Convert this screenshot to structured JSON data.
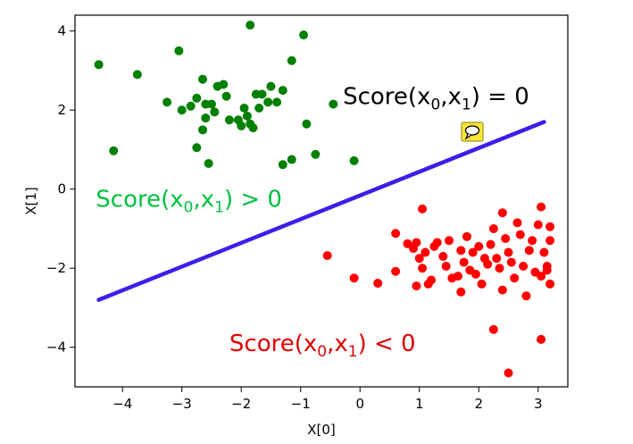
{
  "chart_data": {
    "type": "scatter",
    "xlabel": "X[0]",
    "ylabel": "X[1]",
    "xlim": [
      -4.8,
      3.5
    ],
    "ylim": [
      -5.0,
      4.4
    ],
    "grid": false,
    "xticks": [
      -4,
      -3,
      -2,
      -1,
      0,
      1,
      2,
      3
    ],
    "yticks": [
      -4,
      -2,
      0,
      2,
      4
    ],
    "xtick_labels": [
      "−4",
      "−3",
      "−2",
      "−1",
      "0",
      "1",
      "2",
      "3"
    ],
    "ytick_labels": [
      "−4",
      "−2",
      "0",
      "2",
      "4"
    ],
    "series": [
      {
        "color": "#008000",
        "points": [
          [
            -4.4,
            3.15
          ],
          [
            -3.75,
            2.9
          ],
          [
            -4.15,
            0.97
          ],
          [
            -3.05,
            3.5
          ],
          [
            -3.25,
            2.2
          ],
          [
            -3.0,
            2.0
          ],
          [
            -2.85,
            2.1
          ],
          [
            -2.75,
            2.3
          ],
          [
            -2.65,
            2.78
          ],
          [
            -2.6,
            2.15
          ],
          [
            -2.5,
            2.15
          ],
          [
            -2.45,
            1.95
          ],
          [
            -2.4,
            2.6
          ],
          [
            -2.3,
            2.65
          ],
          [
            -2.25,
            2.35
          ],
          [
            -2.6,
            1.8
          ],
          [
            -2.65,
            1.5
          ],
          [
            -2.75,
            1.05
          ],
          [
            -2.55,
            0.65
          ],
          [
            -2.2,
            1.75
          ],
          [
            -2.05,
            1.75
          ],
          [
            -2.0,
            1.6
          ],
          [
            -1.95,
            2.05
          ],
          [
            -1.9,
            1.85
          ],
          [
            -1.85,
            1.65
          ],
          [
            -1.8,
            1.55
          ],
          [
            -1.75,
            2.4
          ],
          [
            -1.65,
            2.4
          ],
          [
            -1.55,
            2.2
          ],
          [
            -1.5,
            2.6
          ],
          [
            -1.4,
            2.2
          ],
          [
            -1.3,
            2.5
          ],
          [
            -1.15,
            3.25
          ],
          [
            -0.95,
            3.9
          ],
          [
            -1.85,
            4.15
          ],
          [
            -0.9,
            1.65
          ],
          [
            -0.75,
            0.88
          ],
          [
            -0.45,
            2.15
          ],
          [
            -1.15,
            0.75
          ],
          [
            -1.3,
            0.62
          ],
          [
            -0.1,
            0.72
          ],
          [
            -1.7,
            2.05
          ]
        ]
      },
      {
        "color": "#ff0000",
        "points": [
          [
            -0.55,
            -1.68
          ],
          [
            -0.1,
            -2.25
          ],
          [
            0.3,
            -2.38
          ],
          [
            0.6,
            -1.12
          ],
          [
            0.6,
            -2.08
          ],
          [
            0.8,
            -1.38
          ],
          [
            0.9,
            -1.5
          ],
          [
            0.95,
            -1.35
          ],
          [
            1.0,
            -1.75
          ],
          [
            1.05,
            -2.0
          ],
          [
            1.05,
            -0.5
          ],
          [
            1.1,
            -1.6
          ],
          [
            1.15,
            -2.4
          ],
          [
            1.2,
            -2.3
          ],
          [
            1.25,
            -1.45
          ],
          [
            1.3,
            -1.35
          ],
          [
            1.4,
            -1.7
          ],
          [
            1.45,
            -1.95
          ],
          [
            1.5,
            -1.3
          ],
          [
            1.55,
            -2.25
          ],
          [
            1.65,
            -2.2
          ],
          [
            1.7,
            -1.55
          ],
          [
            1.75,
            -1.85
          ],
          [
            1.8,
            -1.2
          ],
          [
            1.85,
            -2.05
          ],
          [
            1.9,
            -1.6
          ],
          [
            1.95,
            -2.15
          ],
          [
            2.0,
            -1.45
          ],
          [
            2.05,
            -2.4
          ],
          [
            2.1,
            -1.75
          ],
          [
            2.15,
            -1.9
          ],
          [
            2.2,
            -1.4
          ],
          [
            2.25,
            -1.0
          ],
          [
            2.3,
            -1.75
          ],
          [
            2.35,
            -2.0
          ],
          [
            2.4,
            -0.6
          ],
          [
            2.45,
            -1.25
          ],
          [
            2.5,
            -1.6
          ],
          [
            2.55,
            -1.85
          ],
          [
            2.6,
            -2.25
          ],
          [
            2.65,
            -0.85
          ],
          [
            2.7,
            -1.15
          ],
          [
            2.75,
            -1.95
          ],
          [
            2.8,
            -2.7
          ],
          [
            2.85,
            -1.55
          ],
          [
            2.9,
            -1.3
          ],
          [
            2.95,
            -2.1
          ],
          [
            3.0,
            -0.9
          ],
          [
            3.05,
            -2.2
          ],
          [
            3.1,
            -1.6
          ],
          [
            3.15,
            -1.95
          ],
          [
            3.2,
            -0.95
          ],
          [
            3.2,
            -1.3
          ],
          [
            3.2,
            -2.4
          ],
          [
            3.15,
            -2.05
          ],
          [
            3.05,
            -0.45
          ],
          [
            2.25,
            -3.55
          ],
          [
            3.05,
            -3.8
          ],
          [
            2.5,
            -4.65
          ],
          [
            1.7,
            -2.6
          ],
          [
            0.95,
            -2.45
          ],
          [
            2.4,
            -2.55
          ]
        ]
      }
    ],
    "line": {
      "color": "#3b1fe8",
      "points": [
        [
          -4.4,
          -2.8
        ],
        [
          3.1,
          1.7
        ]
      ]
    },
    "annotations": [
      {
        "color": "#000000",
        "x": 2.85,
        "y": 2.15,
        "anchor": "end",
        "pre": "Score(x",
        "sub0": "0",
        "mid": ",x",
        "sub1": "1",
        "post": ") = 0"
      },
      {
        "color": "#00c040",
        "x": -4.45,
        "y": -0.45,
        "anchor": "start",
        "pre": "Score(x",
        "sub0": "0",
        "mid": ",x",
        "sub1": "1",
        "post": ") > 0"
      },
      {
        "color": "#e00000",
        "x": -2.2,
        "y": -4.1,
        "anchor": "start",
        "pre": "Score(x",
        "sub0": "0",
        "mid": ",x",
        "sub1": "1",
        "post": ") < 0"
      }
    ]
  }
}
